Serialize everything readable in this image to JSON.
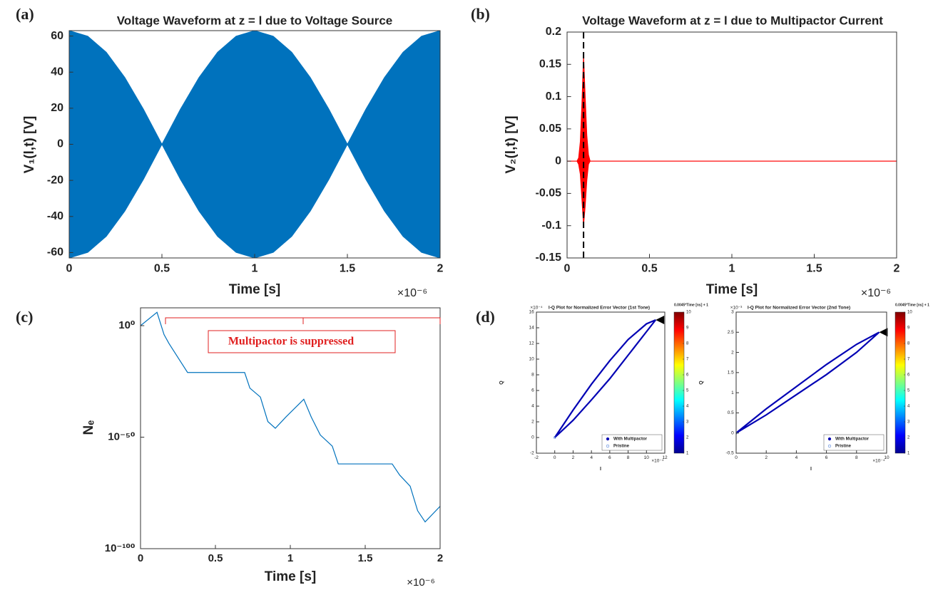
{
  "chart_data": [
    {
      "panel_label": "(a)",
      "type": "envelope",
      "title": "Voltage Waveform at z = l due to Voltage Source",
      "x_label": "Time [s]",
      "x_multiplier": "×10⁻⁶",
      "y_label": "V₁(l,t) [V]",
      "color": "#0072bd",
      "x": [
        0,
        0.1,
        0.2,
        0.3,
        0.4,
        0.5,
        0.6,
        0.7,
        0.8,
        0.9,
        1.0,
        1.1,
        1.2,
        1.3,
        1.4,
        1.5,
        1.6,
        1.7,
        1.8,
        1.9,
        2.0
      ],
      "upper": [
        63,
        59.9,
        51,
        37,
        19.5,
        0,
        19.5,
        37,
        51,
        59.9,
        63,
        59.9,
        51,
        37,
        19.5,
        0,
        19.5,
        37,
        51,
        59.9,
        63
      ],
      "lower": [
        -63,
        -59.9,
        -51,
        -37,
        -19.5,
        0,
        -19.5,
        -37,
        -51,
        -59.9,
        -63,
        -59.9,
        -51,
        -37,
        -19.5,
        0,
        -19.5,
        -37,
        -51,
        -59.9,
        -63
      ],
      "xlim": [
        0,
        2
      ],
      "xticks": [
        0,
        0.5,
        1,
        1.5,
        2
      ],
      "ylim": [
        -63,
        63
      ],
      "yticks": [
        -60,
        -40,
        -20,
        0,
        20,
        40,
        60
      ]
    },
    {
      "panel_label": "(b)",
      "type": "envelope",
      "title": "Voltage Waveform at z = l due to Multipactor Current",
      "x_label": "Time [s]",
      "x_multiplier": "×10⁻⁶",
      "y_label": "V₂(l,t) [V]",
      "color": "#ff0000",
      "marker_x": 0.1,
      "x": [
        0,
        0.06,
        0.07,
        0.08,
        0.09,
        0.1,
        0.11,
        0.12,
        0.13,
        0.14,
        2
      ],
      "upper": [
        0,
        0,
        0.005,
        0.03,
        0.09,
        0.165,
        0.1,
        0.04,
        0.01,
        0,
        0
      ],
      "lower": [
        0,
        0,
        -0.005,
        -0.02,
        -0.06,
        -0.1,
        -0.07,
        -0.03,
        -0.005,
        0,
        0
      ],
      "xlim": [
        0,
        2
      ],
      "xticks": [
        0,
        0.5,
        1,
        1.5,
        2
      ],
      "ylim": [
        -0.15,
        0.2
      ],
      "yticks": [
        -0.15,
        -0.1,
        -0.05,
        0,
        0.05,
        0.1,
        0.15,
        0.2
      ]
    },
    {
      "panel_label": "(c)",
      "type": "line",
      "x_label": "Time [s]",
      "x_multiplier": "×10⁻⁶",
      "y_label": "Nₑ",
      "color": "#0072bd",
      "log_y": true,
      "annotation": "Multipactor is suppressed",
      "x": [
        0,
        0.11,
        0.157,
        0.19,
        0.314,
        0.695,
        0.73,
        0.8,
        0.85,
        0.9,
        0.97,
        1.09,
        1.14,
        1.2,
        1.28,
        1.32,
        1.68,
        1.73,
        1.8,
        1.85,
        1.9,
        2.0
      ],
      "values": [
        1,
        1000000.0,
        0.0001,
        1e-08,
        1e-21,
        1e-21,
        1e-28,
        1e-32,
        1e-43,
        1e-46,
        1e-41,
        1e-33,
        1e-41,
        1e-49,
        1e-54,
        1e-62,
        1e-62,
        1e-67,
        1e-72,
        1e-83,
        1e-88,
        1e-81
      ],
      "xlim": [
        0,
        2
      ],
      "xticks": [
        0,
        0.5,
        1,
        1.5,
        2
      ],
      "ylim": [
        1e-100,
        100000000.0
      ],
      "yticks": [
        {
          "value": 1e-100,
          "label": "10⁻¹⁰⁰"
        },
        {
          "value": 1e-50,
          "label": "10⁻⁵⁰"
        },
        {
          "value": 1,
          "label": "10⁰"
        }
      ]
    },
    {
      "panel_label": "(d)",
      "type": "loop",
      "title": "I-Q Plot for Normalized Error Vector (1st Tone)",
      "x_label": "I",
      "y_label": "Q",
      "x_multiplier": "×10⁻⁴",
      "y_multiplier": "×10⁻⁴",
      "series": [
        {
          "name": "With Multipactor",
          "color": "#0000b4",
          "x": [
            0,
            2,
            4,
            6,
            8,
            10,
            11,
            10,
            8,
            6,
            4,
            2,
            0
          ],
          "values": [
            0,
            3.5,
            6.8,
            9.8,
            12.5,
            14.5,
            15,
            13.5,
            10.5,
            7.5,
            4.8,
            2.2,
            0
          ]
        },
        {
          "name": "Pristine",
          "color": "#4f7fd9",
          "x": [
            0
          ],
          "values": [
            0
          ]
        }
      ],
      "colorbar": {
        "label": "0.0045*Time [ns] + 1",
        "lim": [
          1,
          10
        ],
        "ticks": [
          1,
          2,
          3,
          4,
          5,
          6,
          7,
          8,
          9,
          10
        ]
      },
      "xlim": [
        -2,
        12
      ],
      "xticks": [
        -2,
        0,
        2,
        4,
        6,
        8,
        10,
        12
      ],
      "ylim": [
        -2,
        16
      ],
      "yticks": [
        -2,
        0,
        2,
        4,
        6,
        8,
        10,
        12,
        14,
        16
      ]
    },
    {
      "type": "loop",
      "title": "I-Q Plot for Normalized Error Vector (2nd Tone)",
      "x_label": "I",
      "y_label": "Q",
      "x_multiplier": "×10⁻⁴",
      "y_multiplier": "×10⁻³",
      "series": [
        {
          "name": "With Multipactor",
          "color": "#0000b4",
          "x": [
            0,
            2,
            4,
            6,
            8,
            9.5,
            8,
            6,
            4,
            2,
            0
          ],
          "values": [
            0,
            0.6,
            1.15,
            1.7,
            2.2,
            2.5,
            2.0,
            1.45,
            0.95,
            0.45,
            0
          ]
        },
        {
          "name": "Pristine",
          "color": "#4f7fd9",
          "x": [
            0
          ],
          "values": [
            0
          ]
        }
      ],
      "colorbar": {
        "label": "0.0045*Time [ns] + 1",
        "lim": [
          1,
          10
        ],
        "ticks": [
          1,
          2,
          3,
          4,
          5,
          6,
          7,
          8,
          9,
          10
        ]
      },
      "xlim": [
        0,
        10
      ],
      "xticks": [
        0,
        2,
        4,
        6,
        8,
        10
      ],
      "ylim": [
        -0.5,
        3
      ],
      "yticks": [
        -0.5,
        0,
        0.5,
        1,
        1.5,
        2,
        2.5,
        3
      ]
    }
  ]
}
